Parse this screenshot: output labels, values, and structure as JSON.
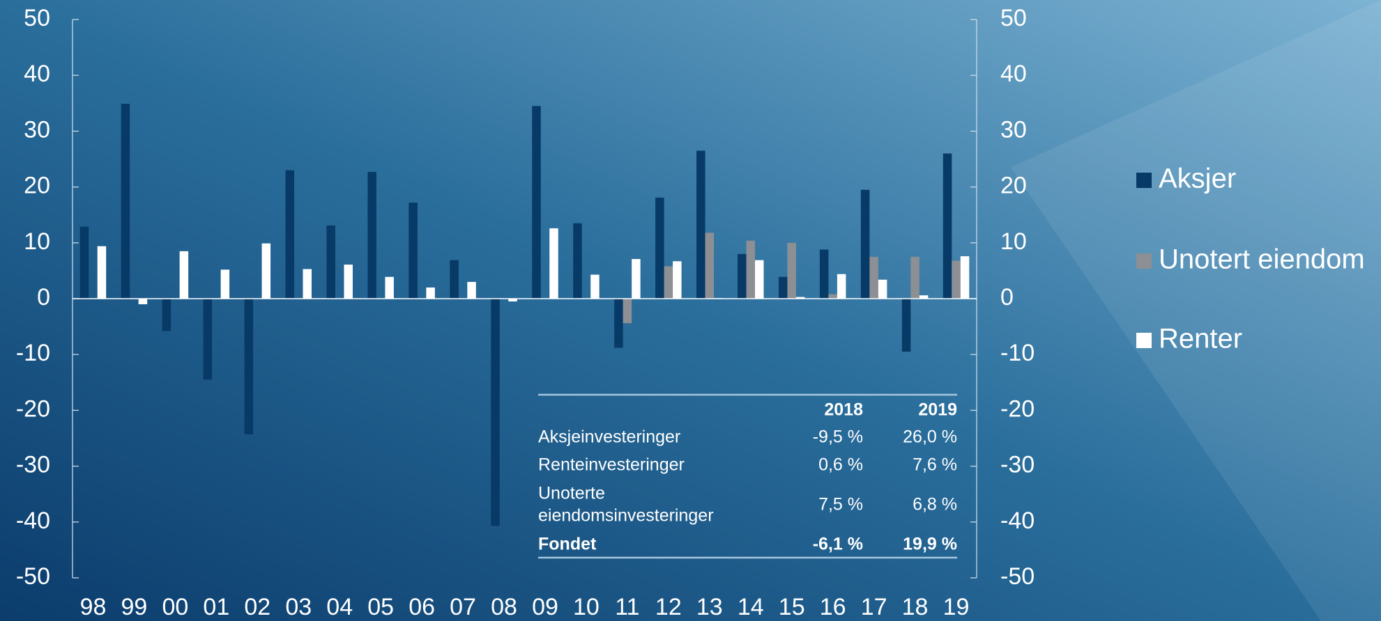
{
  "chart_data": {
    "type": "bar",
    "categories": [
      "98",
      "99",
      "00",
      "01",
      "02",
      "03",
      "04",
      "05",
      "06",
      "07",
      "08",
      "09",
      "10",
      "11",
      "12",
      "13",
      "14",
      "15",
      "16",
      "17",
      "18",
      "19"
    ],
    "series": [
      {
        "name": "Aksjer",
        "color": "#073a66",
        "values": [
          12.9,
          34.9,
          -5.8,
          -14.5,
          -24.3,
          23.0,
          13.1,
          22.7,
          17.2,
          6.9,
          -40.7,
          34.5,
          13.5,
          -8.8,
          18.1,
          26.5,
          8.0,
          3.9,
          8.8,
          19.5,
          -9.5,
          26.0
        ]
      },
      {
        "name": "Unotert eiendom",
        "color": "#8c8f93",
        "values": [
          null,
          null,
          null,
          null,
          null,
          null,
          null,
          null,
          null,
          null,
          null,
          null,
          null,
          -4.4,
          5.8,
          11.8,
          10.4,
          10.0,
          0.8,
          7.5,
          7.5,
          6.8
        ]
      },
      {
        "name": "Renter",
        "color": "#ffffff",
        "values": [
          9.4,
          -1.0,
          8.5,
          5.2,
          9.9,
          5.3,
          6.1,
          3.9,
          2.0,
          3.0,
          -0.5,
          12.6,
          4.3,
          7.1,
          6.7,
          0.1,
          6.9,
          0.3,
          4.4,
          3.4,
          0.6,
          7.6
        ]
      }
    ],
    "ylim": [
      -50,
      50
    ],
    "yticks": [
      -50,
      -40,
      -30,
      -20,
      -10,
      0,
      10,
      20,
      30,
      40,
      50
    ],
    "y2lim": [
      -50,
      50
    ],
    "y2ticks": [
      -50,
      -40,
      -30,
      -20,
      -10,
      0,
      10,
      20,
      30,
      40,
      50
    ],
    "grid": false,
    "legend": "right"
  },
  "table": {
    "header": [
      "2018",
      "2019"
    ],
    "rows": [
      {
        "label": "Aksjeinvesteringer",
        "cells": [
          "-9,5 %",
          "26,0 %"
        ]
      },
      {
        "label": "Renteinvesteringer",
        "cells": [
          "0,6 %",
          "7,6 %"
        ]
      },
      {
        "label": [
          "Unoterte",
          "eiendomsinvesteringer"
        ],
        "cells": [
          "7,5 %",
          "6,8 %"
        ]
      },
      {
        "label": "Fondet",
        "cells": [
          "-6,1 %",
          "19,9 %"
        ]
      }
    ]
  }
}
